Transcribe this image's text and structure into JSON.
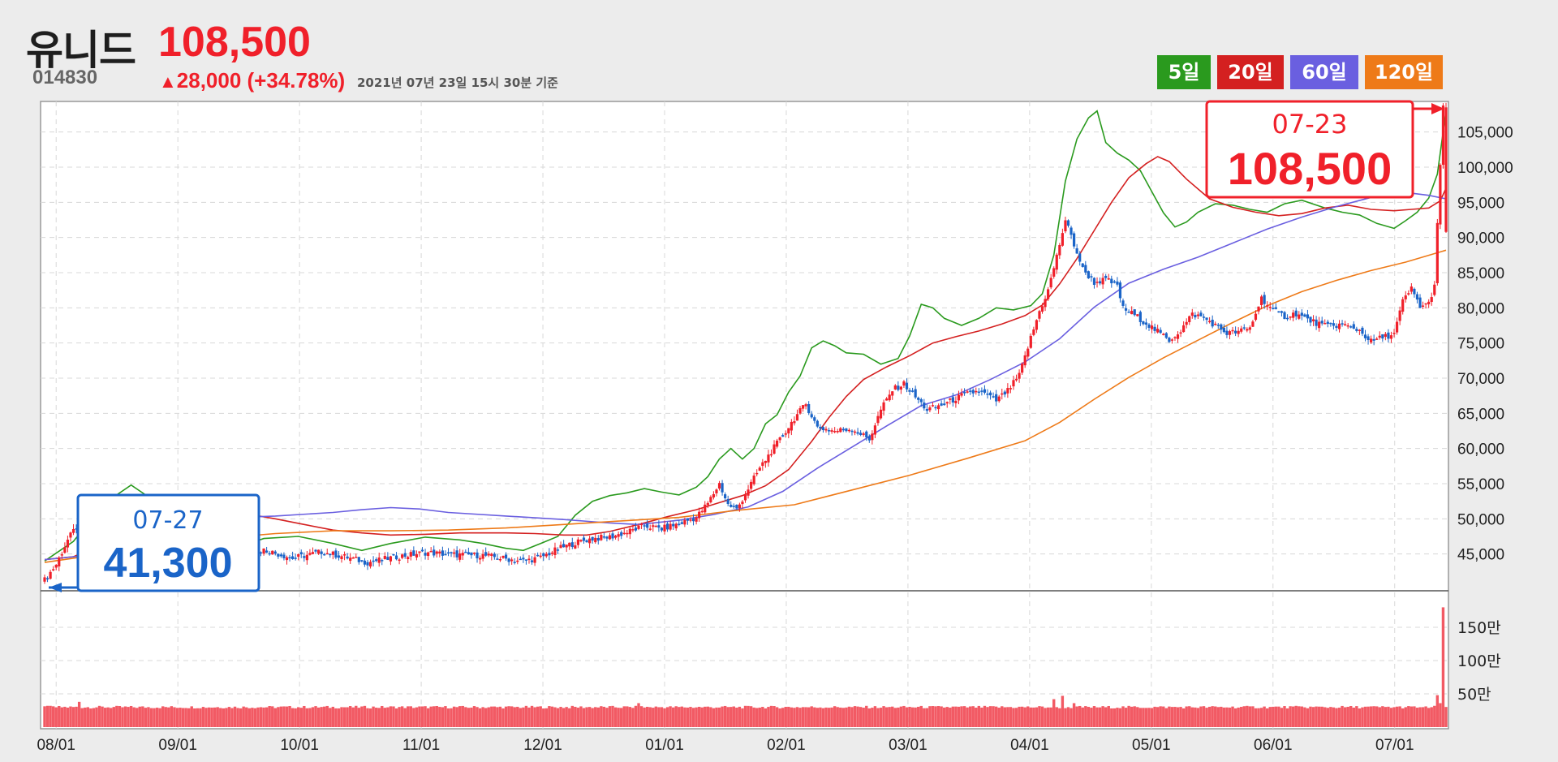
{
  "header": {
    "name": "유니드",
    "price": "108,500",
    "code": "014830",
    "change_arrow": "▲",
    "change": "28,000 (+34.78%)",
    "date": "2021년 07년 23일 15시 30분 기준"
  },
  "ma_buttons": [
    {
      "label": "5일",
      "color": "#2a9a1e"
    },
    {
      "label": "20일",
      "color": "#d42020"
    },
    {
      "label": "60일",
      "color": "#6a5fe0"
    },
    {
      "label": "120일",
      "color": "#ee7a18"
    }
  ],
  "callouts": {
    "low": {
      "date": "07-27",
      "value": "41,300"
    },
    "high": {
      "date": "07-23",
      "value": "108,500"
    }
  },
  "chart_data": {
    "type": "candlestick",
    "x_ticks": [
      "08/01",
      "09/01",
      "10/01",
      "11/01",
      "12/01",
      "01/01",
      "02/01",
      "03/01",
      "04/01",
      "05/01",
      "06/01",
      "07/01"
    ],
    "y_ticks": [
      "105,000",
      "100,000",
      "95,000",
      "90,000",
      "85,000",
      "80,000",
      "75,000",
      "70,000",
      "65,000",
      "60,000",
      "55,000",
      "50,000",
      "45,000"
    ],
    "y_range": [
      40000,
      109000
    ],
    "volume_ticks": [
      "150만",
      "100만",
      "50만"
    ],
    "volume_range": [
      0,
      2000000
    ],
    "close_series": [
      [
        0,
        41300
      ],
      [
        4,
        43500
      ],
      [
        8,
        47000
      ],
      [
        12,
        49500
      ],
      [
        18,
        48000
      ],
      [
        26,
        46500
      ],
      [
        34,
        47200
      ],
      [
        40,
        45500
      ],
      [
        48,
        45000
      ],
      [
        58,
        44200
      ],
      [
        66,
        44800
      ],
      [
        76,
        45600
      ],
      [
        86,
        44400
      ],
      [
        96,
        45300
      ],
      [
        104,
        44600
      ],
      [
        112,
        43800
      ],
      [
        122,
        44600
      ],
      [
        132,
        45200
      ],
      [
        142,
        44900
      ],
      [
        152,
        44800
      ],
      [
        160,
        44300
      ],
      [
        166,
        44000
      ],
      [
        172,
        44500
      ],
      [
        178,
        45700
      ],
      [
        184,
        46600
      ],
      [
        190,
        47200
      ],
      [
        196,
        47400
      ],
      [
        202,
        48100
      ],
      [
        208,
        49000
      ],
      [
        214,
        48600
      ],
      [
        220,
        49300
      ],
      [
        226,
        50200
      ],
      [
        230,
        52200
      ],
      [
        234,
        55000
      ],
      [
        237,
        52000
      ],
      [
        240,
        51300
      ],
      [
        244,
        54300
      ],
      [
        248,
        57200
      ],
      [
        252,
        59600
      ],
      [
        256,
        61800
      ],
      [
        260,
        64300
      ],
      [
        264,
        66300
      ],
      [
        268,
        63000
      ],
      [
        274,
        62500
      ],
      [
        280,
        62800
      ],
      [
        286,
        61300
      ],
      [
        290,
        65500
      ],
      [
        294,
        68300
      ],
      [
        298,
        69200
      ],
      [
        302,
        67300
      ],
      [
        306,
        65500
      ],
      [
        312,
        66300
      ],
      [
        318,
        67500
      ],
      [
        324,
        68200
      ],
      [
        330,
        66800
      ],
      [
        334,
        68200
      ],
      [
        338,
        70400
      ],
      [
        342,
        75700
      ],
      [
        345,
        79500
      ],
      [
        348,
        82500
      ],
      [
        351,
        87300
      ],
      [
        354,
        92500
      ],
      [
        357,
        89000
      ],
      [
        360,
        85500
      ],
      [
        364,
        83600
      ],
      [
        368,
        84000
      ],
      [
        372,
        83200
      ],
      [
        374,
        79900
      ],
      [
        378,
        79000
      ],
      [
        382,
        77800
      ],
      [
        386,
        76600
      ],
      [
        390,
        75400
      ],
      [
        394,
        76800
      ],
      [
        398,
        79100
      ],
      [
        402,
        78600
      ],
      [
        406,
        77500
      ],
      [
        410,
        76400
      ],
      [
        414,
        76600
      ],
      [
        418,
        77100
      ],
      [
        422,
        81400
      ],
      [
        426,
        79600
      ],
      [
        430,
        78800
      ],
      [
        434,
        79200
      ],
      [
        438,
        78300
      ],
      [
        444,
        77400
      ],
      [
        450,
        77600
      ],
      [
        456,
        76800
      ],
      [
        460,
        75200
      ],
      [
        464,
        75800
      ],
      [
        468,
        76300
      ],
      [
        471,
        80900
      ],
      [
        474,
        82700
      ],
      [
        477,
        80200
      ],
      [
        480,
        80600
      ],
      [
        482,
        83300
      ],
      [
        485,
        108500
      ]
    ],
    "series": [
      {
        "name": "5일",
        "color": "#2a9a1e",
        "values": [
          [
            0,
            44000
          ],
          [
            10,
            46800
          ],
          [
            20,
            52000
          ],
          [
            30,
            54800
          ],
          [
            40,
            52000
          ],
          [
            48,
            47500
          ],
          [
            56,
            46500
          ],
          [
            66,
            45800
          ],
          [
            76,
            47200
          ],
          [
            88,
            47500
          ],
          [
            100,
            46500
          ],
          [
            110,
            45500
          ],
          [
            120,
            46500
          ],
          [
            132,
            47400
          ],
          [
            144,
            47000
          ],
          [
            152,
            46500
          ],
          [
            160,
            45800
          ],
          [
            166,
            45500
          ],
          [
            172,
            46500
          ],
          [
            178,
            47500
          ],
          [
            184,
            50500
          ],
          [
            190,
            52500
          ],
          [
            196,
            53300
          ],
          [
            202,
            53700
          ],
          [
            208,
            54300
          ],
          [
            214,
            53800
          ],
          [
            220,
            53400
          ],
          [
            226,
            54500
          ],
          [
            230,
            56000
          ],
          [
            234,
            58500
          ],
          [
            238,
            60000
          ],
          [
            242,
            58500
          ],
          [
            246,
            60000
          ],
          [
            250,
            63500
          ],
          [
            254,
            64800
          ],
          [
            258,
            68000
          ],
          [
            262,
            70300
          ],
          [
            266,
            74300
          ],
          [
            270,
            75300
          ],
          [
            274,
            74600
          ],
          [
            278,
            73600
          ],
          [
            284,
            73400
          ],
          [
            290,
            72000
          ],
          [
            296,
            72800
          ],
          [
            300,
            76000
          ],
          [
            304,
            80500
          ],
          [
            308,
            80000
          ],
          [
            312,
            78500
          ],
          [
            318,
            77500
          ],
          [
            324,
            78500
          ],
          [
            330,
            80000
          ],
          [
            336,
            79700
          ],
          [
            342,
            80300
          ],
          [
            346,
            82000
          ],
          [
            350,
            87500
          ],
          [
            354,
            98000
          ],
          [
            358,
            104000
          ],
          [
            362,
            107000
          ],
          [
            365,
            108000
          ],
          [
            368,
            103500
          ],
          [
            372,
            102000
          ],
          [
            376,
            101000
          ],
          [
            380,
            99500
          ],
          [
            384,
            96500
          ],
          [
            388,
            93500
          ],
          [
            392,
            91500
          ],
          [
            396,
            92200
          ],
          [
            400,
            93600
          ],
          [
            406,
            94800
          ],
          [
            412,
            94600
          ],
          [
            418,
            94000
          ],
          [
            424,
            93600
          ],
          [
            430,
            94800
          ],
          [
            436,
            95300
          ],
          [
            444,
            94200
          ],
          [
            450,
            93600
          ],
          [
            456,
            93200
          ],
          [
            462,
            92000
          ],
          [
            468,
            91300
          ],
          [
            472,
            92400
          ],
          [
            476,
            93600
          ],
          [
            480,
            95600
          ],
          [
            483,
            99000
          ],
          [
            486,
            108000
          ]
        ]
      },
      {
        "name": "20일",
        "color": "#d42020",
        "values": [
          [
            0,
            44200
          ],
          [
            10,
            44600
          ],
          [
            20,
            46500
          ],
          [
            30,
            49000
          ],
          [
            40,
            51000
          ],
          [
            50,
            51700
          ],
          [
            60,
            51300
          ],
          [
            70,
            50700
          ],
          [
            80,
            50000
          ],
          [
            90,
            49200
          ],
          [
            100,
            48400
          ],
          [
            110,
            48000
          ],
          [
            120,
            47700
          ],
          [
            132,
            47800
          ],
          [
            144,
            48000
          ],
          [
            160,
            48000
          ],
          [
            170,
            47900
          ],
          [
            180,
            47700
          ],
          [
            188,
            47700
          ],
          [
            196,
            48200
          ],
          [
            206,
            49200
          ],
          [
            216,
            50300
          ],
          [
            226,
            51300
          ],
          [
            234,
            52300
          ],
          [
            242,
            53300
          ],
          [
            250,
            54700
          ],
          [
            258,
            57000
          ],
          [
            266,
            61000
          ],
          [
            272,
            64400
          ],
          [
            278,
            67400
          ],
          [
            284,
            69800
          ],
          [
            292,
            71600
          ],
          [
            300,
            73200
          ],
          [
            308,
            75000
          ],
          [
            316,
            75900
          ],
          [
            324,
            76700
          ],
          [
            332,
            77700
          ],
          [
            340,
            78900
          ],
          [
            346,
            80400
          ],
          [
            352,
            83400
          ],
          [
            358,
            87000
          ],
          [
            364,
            91000
          ],
          [
            370,
            95000
          ],
          [
            376,
            98500
          ],
          [
            382,
            100500
          ],
          [
            386,
            101500
          ],
          [
            390,
            100800
          ],
          [
            396,
            98300
          ],
          [
            404,
            95500
          ],
          [
            412,
            94300
          ],
          [
            420,
            93600
          ],
          [
            428,
            93100
          ],
          [
            436,
            93400
          ],
          [
            444,
            94200
          ],
          [
            452,
            94600
          ],
          [
            460,
            94000
          ],
          [
            468,
            93800
          ],
          [
            474,
            94000
          ],
          [
            480,
            94200
          ],
          [
            484,
            95200
          ],
          [
            486,
            97000
          ]
        ]
      },
      {
        "name": "60일",
        "color": "#6a5fe0",
        "values": [
          [
            0,
            44200
          ],
          [
            20,
            45000
          ],
          [
            40,
            48800
          ],
          [
            60,
            50100
          ],
          [
            80,
            50400
          ],
          [
            100,
            50900
          ],
          [
            110,
            51300
          ],
          [
            120,
            51600
          ],
          [
            130,
            51400
          ],
          [
            140,
            50900
          ],
          [
            160,
            50400
          ],
          [
            180,
            49900
          ],
          [
            196,
            49400
          ],
          [
            206,
            49200
          ],
          [
            220,
            49800
          ],
          [
            232,
            50600
          ],
          [
            244,
            51700
          ],
          [
            256,
            53900
          ],
          [
            268,
            57200
          ],
          [
            280,
            60200
          ],
          [
            292,
            63200
          ],
          [
            304,
            66100
          ],
          [
            316,
            67600
          ],
          [
            328,
            69800
          ],
          [
            340,
            72300
          ],
          [
            352,
            75600
          ],
          [
            364,
            80100
          ],
          [
            376,
            83500
          ],
          [
            388,
            85500
          ],
          [
            400,
            87200
          ],
          [
            412,
            89200
          ],
          [
            424,
            91200
          ],
          [
            436,
            92900
          ],
          [
            448,
            94400
          ],
          [
            460,
            95700
          ],
          [
            472,
            96400
          ],
          [
            480,
            96000
          ],
          [
            486,
            95500
          ]
        ]
      },
      {
        "name": "120일",
        "color": "#ee7a18",
        "values": [
          [
            0,
            43800
          ],
          [
            20,
            45000
          ],
          [
            40,
            46000
          ],
          [
            60,
            47200
          ],
          [
            80,
            47900
          ],
          [
            100,
            48300
          ],
          [
            120,
            48300
          ],
          [
            140,
            48400
          ],
          [
            160,
            48700
          ],
          [
            180,
            49200
          ],
          [
            200,
            49700
          ],
          [
            220,
            50200
          ],
          [
            240,
            51200
          ],
          [
            260,
            52000
          ],
          [
            280,
            54100
          ],
          [
            300,
            56200
          ],
          [
            320,
            58600
          ],
          [
            340,
            61100
          ],
          [
            352,
            63700
          ],
          [
            364,
            67000
          ],
          [
            376,
            70100
          ],
          [
            388,
            72900
          ],
          [
            400,
            75400
          ],
          [
            412,
            77900
          ],
          [
            424,
            80300
          ],
          [
            436,
            82300
          ],
          [
            448,
            83900
          ],
          [
            460,
            85300
          ],
          [
            472,
            86500
          ],
          [
            486,
            88200
          ]
        ]
      }
    ]
  }
}
